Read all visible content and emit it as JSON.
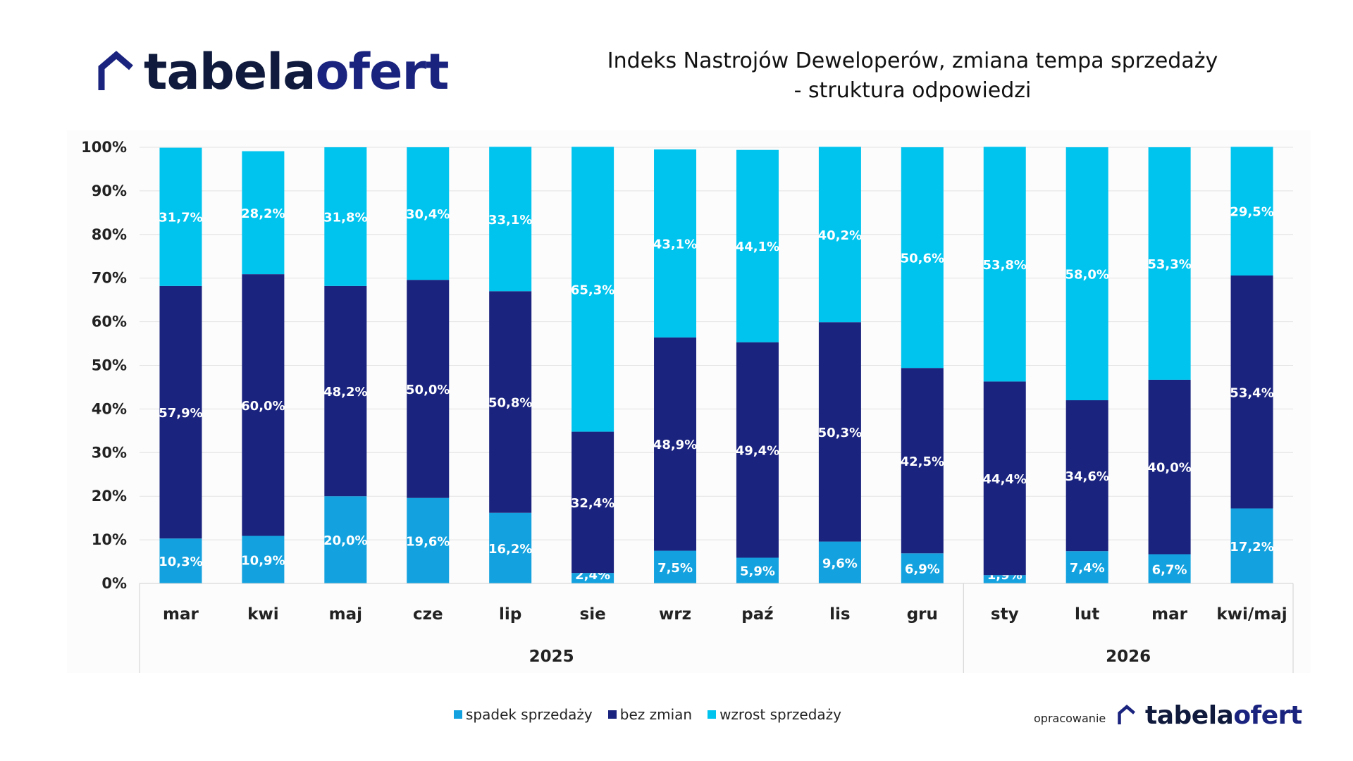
{
  "logo": {
    "part1": "tabela",
    "part2": "ofert"
  },
  "credit_label": "opracowanie",
  "chart_data": {
    "type": "bar",
    "stacked": true,
    "title_lines": [
      "Indeks Nastrojów Deweloperów, zmiana tempa sprzedaży",
      "- struktura odpowiedzi"
    ],
    "categories": [
      "mar",
      "kwi",
      "maj",
      "cze",
      "lip",
      "sie",
      "wrz",
      "paź",
      "lis",
      "gru",
      "sty",
      "lut",
      "mar",
      "kwi/maj"
    ],
    "groups": [
      {
        "label": "2025",
        "from": 0,
        "to": 9
      },
      {
        "label": "2026",
        "from": 10,
        "to": 13
      }
    ],
    "y_ticks": [
      "0%",
      "10%",
      "20%",
      "30%",
      "40%",
      "50%",
      "60%",
      "70%",
      "80%",
      "90%",
      "100%"
    ],
    "ylim": [
      0,
      100
    ],
    "grid": true,
    "legend_position": "bottom",
    "series": [
      {
        "name": "spadek sprzedaży",
        "color": "#13a2df",
        "values": [
          10.3,
          10.9,
          20.0,
          19.6,
          16.2,
          2.4,
          7.5,
          5.9,
          9.6,
          6.9,
          1.9,
          7.4,
          6.7,
          17.2
        ],
        "labels": [
          "10,3%",
          "10,9%",
          "20,0%",
          "19,6%",
          "16,2%",
          "2,4%",
          "7,5%",
          "5,9%",
          "9,6%",
          "6,9%",
          "1,9%",
          "7,4%",
          "6,7%",
          "17,2%"
        ]
      },
      {
        "name": "bez zmian",
        "color": "#1a237e",
        "values": [
          57.9,
          60.0,
          48.2,
          50.0,
          50.8,
          32.4,
          48.9,
          49.4,
          50.3,
          42.5,
          44.4,
          34.6,
          40.0,
          53.4
        ],
        "labels": [
          "57,9%",
          "60,0%",
          "48,2%",
          "50,0%",
          "50,8%",
          "32,4%",
          "48,9%",
          "49,4%",
          "50,3%",
          "42,5%",
          "44,4%",
          "34,6%",
          "40,0%",
          "53,4%"
        ]
      },
      {
        "name": "wzrost sprzedaży",
        "color": "#00c3ee",
        "values": [
          31.7,
          28.2,
          31.8,
          30.4,
          33.1,
          65.3,
          43.1,
          44.1,
          40.2,
          50.6,
          53.8,
          58.0,
          53.3,
          29.5
        ],
        "labels": [
          "31,7%",
          "28,2%",
          "31,8%",
          "30,4%",
          "33,1%",
          "65,3%",
          "43,1%",
          "44,1%",
          "40,2%",
          "50,6%",
          "53,8%",
          "58,0%",
          "53,3%",
          "29,5%"
        ]
      }
    ]
  }
}
